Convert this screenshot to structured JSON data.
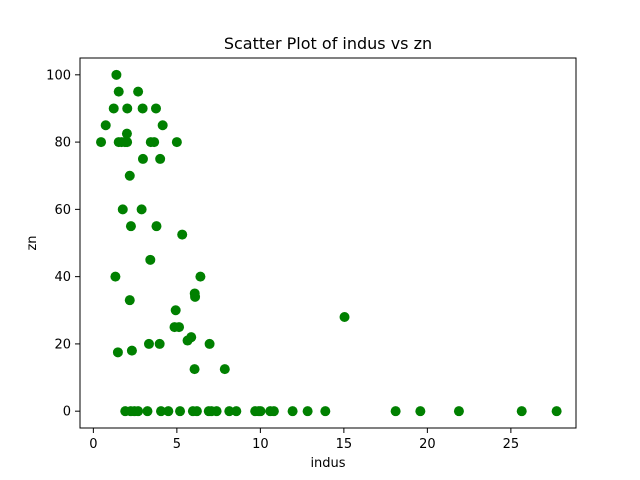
{
  "chart_data": {
    "type": "scatter",
    "title": "Scatter Plot of indus vs zn",
    "xlabel": "indus",
    "ylabel": "zn",
    "xlim": [
      -0.8,
      28.9
    ],
    "ylim": [
      -5.0,
      105.0
    ],
    "xticks": [
      0,
      5,
      10,
      15,
      20,
      25
    ],
    "yticks": [
      0,
      20,
      40,
      60,
      80,
      100
    ],
    "grid": false,
    "marker_color": "#008000",
    "series": [
      {
        "points": [
          [
            0.46,
            80
          ],
          [
            0.74,
            85
          ],
          [
            1.22,
            90
          ],
          [
            1.32,
            40
          ],
          [
            1.38,
            100
          ],
          [
            1.47,
            17.5
          ],
          [
            1.52,
            95
          ],
          [
            1.52,
            80
          ],
          [
            1.69,
            80
          ],
          [
            1.76,
            60
          ],
          [
            1.89,
            80
          ],
          [
            1.91,
            0
          ],
          [
            2.02,
            80
          ],
          [
            2.01,
            82.5
          ],
          [
            2.03,
            90
          ],
          [
            2.18,
            33
          ],
          [
            2.18,
            70
          ],
          [
            2.24,
            0
          ],
          [
            2.25,
            55
          ],
          [
            2.31,
            18
          ],
          [
            2.46,
            0
          ],
          [
            2.68,
            0
          ],
          [
            2.68,
            95
          ],
          [
            2.89,
            60
          ],
          [
            2.95,
            90
          ],
          [
            2.97,
            75
          ],
          [
            3.24,
            0
          ],
          [
            3.33,
            20
          ],
          [
            3.41,
            45
          ],
          [
            3.44,
            80
          ],
          [
            3.64,
            80
          ],
          [
            3.75,
            90
          ],
          [
            3.78,
            55
          ],
          [
            3.97,
            20
          ],
          [
            4.05,
            0
          ],
          [
            4.0,
            75
          ],
          [
            4.15,
            85
          ],
          [
            4.49,
            0
          ],
          [
            4.86,
            25
          ],
          [
            4.93,
            30
          ],
          [
            5.0,
            80
          ],
          [
            5.13,
            25
          ],
          [
            5.19,
            0
          ],
          [
            5.32,
            52.5
          ],
          [
            5.64,
            21
          ],
          [
            5.86,
            22
          ],
          [
            5.96,
            0
          ],
          [
            6.07,
            35
          ],
          [
            6.06,
            12.5
          ],
          [
            6.09,
            34
          ],
          [
            6.2,
            0
          ],
          [
            6.41,
            40
          ],
          [
            6.91,
            0
          ],
          [
            6.96,
            20
          ],
          [
            7.07,
            0
          ],
          [
            7.38,
            0
          ],
          [
            7.87,
            12.5
          ],
          [
            8.14,
            0
          ],
          [
            8.56,
            0
          ],
          [
            9.69,
            0
          ],
          [
            9.9,
            0
          ],
          [
            10.01,
            0
          ],
          [
            10.59,
            0
          ],
          [
            10.81,
            0
          ],
          [
            11.93,
            0
          ],
          [
            12.83,
            0
          ],
          [
            13.89,
            0
          ],
          [
            15.04,
            28
          ],
          [
            18.1,
            0
          ],
          [
            19.58,
            0
          ],
          [
            21.89,
            0
          ],
          [
            25.65,
            0
          ],
          [
            27.74,
            0
          ]
        ]
      }
    ]
  }
}
